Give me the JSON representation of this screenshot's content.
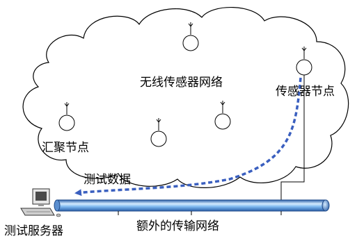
{
  "labels": {
    "network": "无线传感器网络",
    "sensor_node": "传感器节点",
    "sink_node": "汇聚节点",
    "test_data": "测试数据",
    "server": "测试服务器",
    "extra_network": "额外的传输网络"
  },
  "colors": {
    "cloud_stroke": "#000000",
    "data_path": "#3a5fbf",
    "pipe_light": "#d6ecff",
    "pipe_mid": "#7fb9f0",
    "pipe_dark": "#2a5ea8"
  },
  "icons": {
    "node": "antenna-node-icon",
    "server": "computer-icon"
  }
}
